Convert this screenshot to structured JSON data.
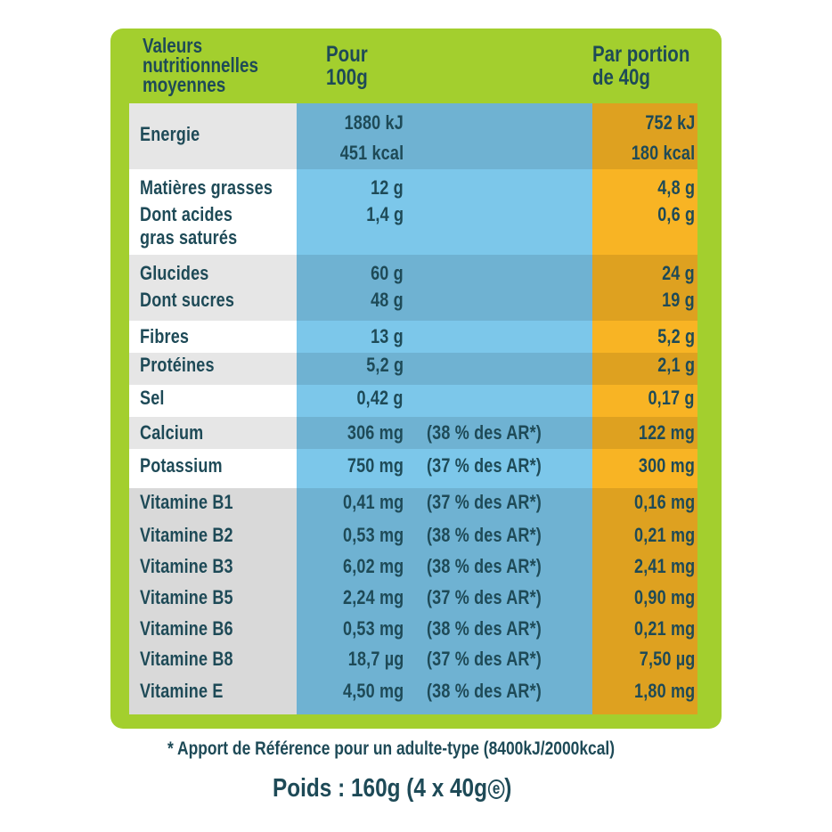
{
  "header": {
    "label_lines": [
      "Valeurs",
      "nutritionnelles",
      "moyennes"
    ],
    "per100_lines": [
      "Pour",
      "100g"
    ],
    "portion_lines": [
      "Par portion",
      "de 40g"
    ]
  },
  "rows": [
    {
      "labels": [
        "Energie"
      ],
      "per100": [
        "1880 kJ",
        "451 kcal"
      ],
      "ar": "",
      "portion": [
        "752 kJ",
        "180 kcal"
      ]
    },
    {
      "labels": [
        "Matières grasses",
        "Dont acides",
        "gras saturés"
      ],
      "per100": [
        "12 g",
        "1,4 g"
      ],
      "ar": "",
      "portion": [
        "4,8 g",
        "0,6 g"
      ]
    },
    {
      "labels": [
        "Glucides",
        "Dont sucres"
      ],
      "per100": [
        "60 g",
        "48 g"
      ],
      "ar": "",
      "portion": [
        "24 g",
        "19 g"
      ]
    },
    {
      "labels": [
        "Fibres"
      ],
      "per100": [
        "13 g"
      ],
      "ar": "",
      "portion": [
        "5,2 g"
      ]
    },
    {
      "labels": [
        "Protéines"
      ],
      "per100": [
        "5,2 g"
      ],
      "ar": "",
      "portion": [
        "2,1 g"
      ]
    },
    {
      "labels": [
        "Sel"
      ],
      "per100": [
        "0,42 g"
      ],
      "ar": "",
      "portion": [
        "0,17 g"
      ]
    },
    {
      "labels": [
        "Calcium"
      ],
      "per100": [
        "306 mg"
      ],
      "ar": "(38 % des AR*)",
      "portion": [
        "122 mg"
      ]
    },
    {
      "labels": [
        "Potassium"
      ],
      "per100": [
        "750 mg"
      ],
      "ar": "(37 % des AR*)",
      "portion": [
        "300 mg"
      ]
    },
    {
      "labels": [
        "Vitamine B1"
      ],
      "per100": [
        "0,41 mg"
      ],
      "ar": "(37 % des AR*)",
      "portion": [
        "0,16 mg"
      ]
    },
    {
      "labels": [
        "Vitamine B2"
      ],
      "per100": [
        "0,53 mg"
      ],
      "ar": "(38 % des AR*)",
      "portion": [
        "0,21 mg"
      ]
    },
    {
      "labels": [
        "Vitamine B3"
      ],
      "per100": [
        "6,02 mg"
      ],
      "ar": "(38 % des AR*)",
      "portion": [
        "2,41 mg"
      ]
    },
    {
      "labels": [
        "Vitamine B5"
      ],
      "per100": [
        "2,24 mg"
      ],
      "ar": "(37 % des AR*)",
      "portion": [
        "0,90 mg"
      ]
    },
    {
      "labels": [
        "Vitamine B6"
      ],
      "per100": [
        "0,53 mg"
      ],
      "ar": "(38 % des AR*)",
      "portion": [
        "0,21 mg"
      ]
    },
    {
      "labels": [
        "Vitamine B8"
      ],
      "per100": [
        "18,7 µg"
      ],
      "ar": "(37 % des AR*)",
      "portion": [
        "7,50 µg"
      ]
    },
    {
      "labels": [
        "Vitamine E"
      ],
      "per100": [
        "4,50 mg"
      ],
      "ar": "(38 % des AR*)",
      "portion": [
        "1,80 mg"
      ]
    }
  ],
  "footnote": "* Apport de Référence pour un adulte-type (8400kJ/2000kcal)",
  "weight": {
    "text": "Poids : 160g (4 x 40g",
    "estimated_mark": "e",
    "close": ")"
  },
  "colors": {
    "frame": "#a3cf2e",
    "per100_column": "#7cc7ea",
    "portion_column": "#f8b424",
    "text": "#1e4a57"
  }
}
